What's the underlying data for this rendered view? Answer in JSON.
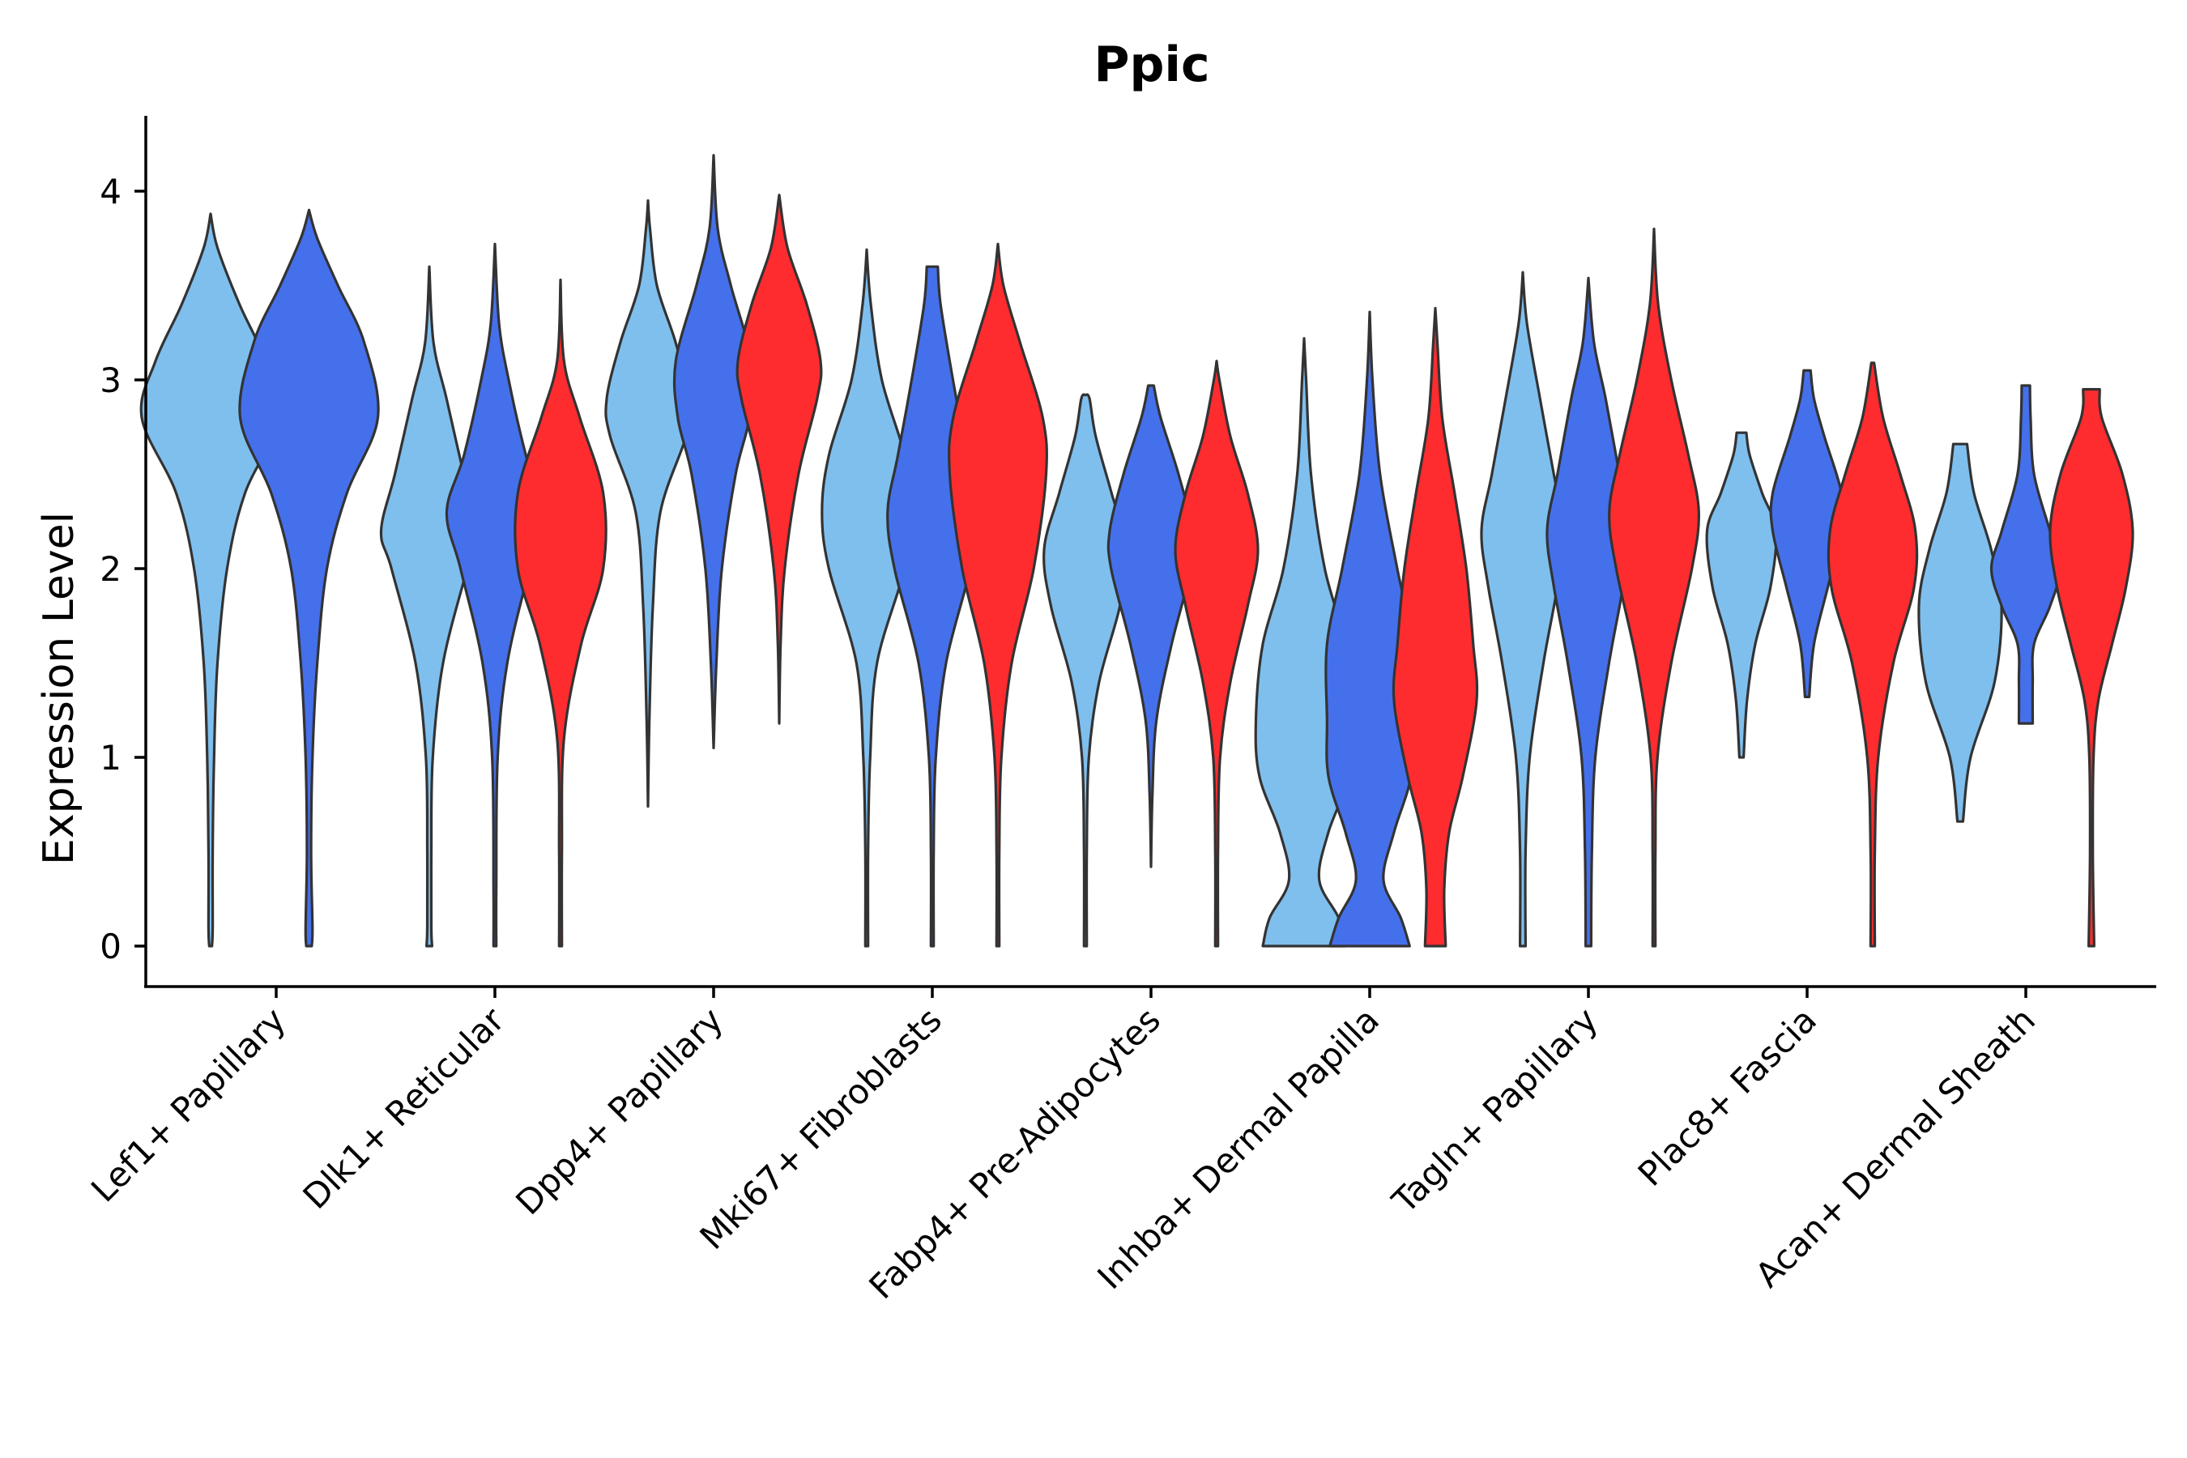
{
  "chart_data": {
    "type": "violin",
    "title": "Ppic",
    "xlabel": "",
    "ylabel": "Expression Level",
    "ylim": [
      -0.2,
      4.4
    ],
    "yticks": [
      0,
      1,
      2,
      3,
      4
    ],
    "categories": [
      "Lef1+ Papillary",
      "Dlk1+ Reticular",
      "Dpp4+ Papillary",
      "Mki67+ Fibroblasts",
      "Fabp4+ Pre-Adipocytes",
      "Inhba+ Dermal Papilla",
      "Tagln+ Papillary",
      "Plac8+ Fascia",
      "Acan+ Dermal Sheath"
    ],
    "series_colors": [
      "#7fbfee",
      "#4570ec",
      "#ff2c2f"
    ],
    "violins": [
      {
        "category": "Lef1+ Papillary",
        "series": 0,
        "offset": -0.3,
        "min": 0,
        "max": 3.88,
        "profile": [
          [
            0,
            0.02
          ],
          [
            0.1,
            0.03
          ],
          [
            0.5,
            0.03
          ],
          [
            1,
            0.05
          ],
          [
            1.5,
            0.1
          ],
          [
            2,
            0.24
          ],
          [
            2.4,
            0.5
          ],
          [
            2.8,
            1.0
          ],
          [
            3.1,
            0.8
          ],
          [
            3.4,
            0.42
          ],
          [
            3.7,
            0.1
          ],
          [
            3.88,
            0
          ]
        ]
      },
      {
        "category": "Lef1+ Papillary",
        "series": 1,
        "offset": 0.15,
        "min": 0,
        "max": 3.9,
        "profile": [
          [
            0,
            0.04
          ],
          [
            0.1,
            0.05
          ],
          [
            0.5,
            0.03
          ],
          [
            1,
            0.05
          ],
          [
            1.5,
            0.12
          ],
          [
            2,
            0.26
          ],
          [
            2.4,
            0.55
          ],
          [
            2.8,
            1.0
          ],
          [
            3.2,
            0.8
          ],
          [
            3.5,
            0.42
          ],
          [
            3.75,
            0.12
          ],
          [
            3.9,
            0
          ]
        ]
      },
      {
        "category": "Dlk1+ Reticular",
        "series": 0,
        "offset": -0.3,
        "min": 0,
        "max": 3.6,
        "profile": [
          [
            0,
            0.04
          ],
          [
            0.1,
            0.03
          ],
          [
            0.5,
            0.03
          ],
          [
            1,
            0.05
          ],
          [
            1.5,
            0.2
          ],
          [
            2,
            0.55
          ],
          [
            2.2,
            0.7
          ],
          [
            2.5,
            0.5
          ],
          [
            2.9,
            0.25
          ],
          [
            3.2,
            0.06
          ],
          [
            3.6,
            0
          ]
        ]
      },
      {
        "category": "Dlk1+ Reticular",
        "series": 1,
        "offset": 0,
        "min": 0,
        "max": 3.72,
        "profile": [
          [
            0,
            0.02
          ],
          [
            0.3,
            0.02
          ],
          [
            1,
            0.04
          ],
          [
            1.5,
            0.18
          ],
          [
            2,
            0.5
          ],
          [
            2.3,
            0.7
          ],
          [
            2.6,
            0.45
          ],
          [
            3,
            0.2
          ],
          [
            3.3,
            0.06
          ],
          [
            3.72,
            0
          ]
        ]
      },
      {
        "category": "Dlk1+ Reticular",
        "series": 2,
        "offset": 0.3,
        "min": 0,
        "max": 3.53,
        "profile": [
          [
            0,
            0.02
          ],
          [
            0.5,
            0.02
          ],
          [
            1.1,
            0.05
          ],
          [
            1.6,
            0.3
          ],
          [
            2,
            0.62
          ],
          [
            2.4,
            0.62
          ],
          [
            2.8,
            0.28
          ],
          [
            3.1,
            0.05
          ],
          [
            3.53,
            0
          ]
        ]
      },
      {
        "category": "Dpp4+ Papillary",
        "series": 0,
        "offset": -0.3,
        "min": 0.74,
        "max": 3.95,
        "profile": [
          [
            0.74,
            0
          ],
          [
            1.2,
            0.02
          ],
          [
            1.8,
            0.07
          ],
          [
            2.3,
            0.18
          ],
          [
            2.7,
            0.55
          ],
          [
            2.9,
            0.6
          ],
          [
            3.2,
            0.4
          ],
          [
            3.5,
            0.13
          ],
          [
            3.8,
            0.03
          ],
          [
            3.95,
            0
          ]
        ]
      },
      {
        "category": "Dpp4+ Papillary",
        "series": 1,
        "offset": 0,
        "min": 1.05,
        "max": 4.19,
        "profile": [
          [
            1.05,
            0
          ],
          [
            1.5,
            0.04
          ],
          [
            2,
            0.12
          ],
          [
            2.5,
            0.32
          ],
          [
            2.8,
            0.52
          ],
          [
            3.1,
            0.55
          ],
          [
            3.5,
            0.25
          ],
          [
            3.8,
            0.06
          ],
          [
            4.19,
            0
          ]
        ]
      },
      {
        "category": "Dpp4+ Papillary",
        "series": 2,
        "offset": 0.3,
        "min": 1.18,
        "max": 3.98,
        "profile": [
          [
            1.18,
            0
          ],
          [
            1.6,
            0.02
          ],
          [
            2,
            0.08
          ],
          [
            2.5,
            0.28
          ],
          [
            2.9,
            0.55
          ],
          [
            3.1,
            0.6
          ],
          [
            3.4,
            0.4
          ],
          [
            3.7,
            0.12
          ],
          [
            3.98,
            0
          ]
        ]
      },
      {
        "category": "Mki67+ Fibroblasts",
        "series": 0,
        "offset": -0.3,
        "min": 0,
        "max": 3.69,
        "profile": [
          [
            0,
            0.02
          ],
          [
            0.5,
            0.02
          ],
          [
            1,
            0.05
          ],
          [
            1.5,
            0.15
          ],
          [
            2,
            0.55
          ],
          [
            2.3,
            0.65
          ],
          [
            2.6,
            0.55
          ],
          [
            3,
            0.22
          ],
          [
            3.4,
            0.06
          ],
          [
            3.69,
            0
          ]
        ]
      },
      {
        "category": "Mki67+ Fibroblasts",
        "series": 1,
        "offset": 0,
        "min": 0,
        "max": 3.6,
        "profile": [
          [
            0,
            0.02
          ],
          [
            0.5,
            0.02
          ],
          [
            1,
            0.05
          ],
          [
            1.5,
            0.2
          ],
          [
            2,
            0.55
          ],
          [
            2.3,
            0.65
          ],
          [
            2.6,
            0.5
          ],
          [
            3,
            0.3
          ],
          [
            3.4,
            0.12
          ],
          [
            3.6,
            0.08
          ]
        ]
      },
      {
        "category": "Mki67+ Fibroblasts",
        "series": 2,
        "offset": 0.3,
        "min": 0,
        "max": 3.72,
        "profile": [
          [
            0,
            0.02
          ],
          [
            0.5,
            0.02
          ],
          [
            1,
            0.05
          ],
          [
            1.5,
            0.2
          ],
          [
            2,
            0.52
          ],
          [
            2.5,
            0.7
          ],
          [
            2.8,
            0.65
          ],
          [
            3.2,
            0.32
          ],
          [
            3.5,
            0.08
          ],
          [
            3.72,
            0
          ]
        ]
      },
      {
        "category": "Fabp4+ Pre-Adipocytes",
        "series": 0,
        "offset": -0.3,
        "min": 0,
        "max": 2.92,
        "profile": [
          [
            0,
            0.02
          ],
          [
            0.5,
            0.02
          ],
          [
            1,
            0.05
          ],
          [
            1.4,
            0.2
          ],
          [
            1.8,
            0.5
          ],
          [
            2.1,
            0.6
          ],
          [
            2.4,
            0.38
          ],
          [
            2.7,
            0.15
          ],
          [
            2.9,
            0.06
          ],
          [
            2.92,
            0
          ]
        ]
      },
      {
        "category": "Fabp4+ Pre-Adipocytes",
        "series": 1,
        "offset": 0,
        "min": 0.42,
        "max": 2.97,
        "profile": [
          [
            0.42,
            0
          ],
          [
            0.8,
            0.02
          ],
          [
            1.2,
            0.08
          ],
          [
            1.6,
            0.3
          ],
          [
            2,
            0.58
          ],
          [
            2.2,
            0.6
          ],
          [
            2.5,
            0.4
          ],
          [
            2.8,
            0.14
          ],
          [
            2.97,
            0.04
          ]
        ]
      },
      {
        "category": "Fabp4+ Pre-Adipocytes",
        "series": 2,
        "offset": 0.3,
        "min": 0,
        "max": 3.1,
        "profile": [
          [
            0,
            0.02
          ],
          [
            0.5,
            0.02
          ],
          [
            1,
            0.05
          ],
          [
            1.4,
            0.2
          ],
          [
            1.8,
            0.45
          ],
          [
            2.1,
            0.6
          ],
          [
            2.4,
            0.45
          ],
          [
            2.7,
            0.2
          ],
          [
            3,
            0.04
          ],
          [
            3.1,
            0
          ]
        ]
      },
      {
        "category": "Inhba+ Dermal Papilla",
        "series": 0,
        "offset": -0.3,
        "min": 0,
        "max": 3.22,
        "profile": [
          [
            0,
            0.6
          ],
          [
            0.15,
            0.5
          ],
          [
            0.35,
            0.22
          ],
          [
            0.6,
            0.35
          ],
          [
            0.9,
            0.65
          ],
          [
            1.2,
            0.7
          ],
          [
            1.6,
            0.6
          ],
          [
            2,
            0.3
          ],
          [
            2.5,
            0.1
          ],
          [
            3,
            0.03
          ],
          [
            3.22,
            0
          ]
        ]
      },
      {
        "category": "Inhba+ Dermal Papilla",
        "series": 1,
        "offset": 0,
        "min": 0,
        "max": 3.36,
        "profile": [
          [
            0,
            0.58
          ],
          [
            0.15,
            0.45
          ],
          [
            0.35,
            0.2
          ],
          [
            0.6,
            0.35
          ],
          [
            0.9,
            0.6
          ],
          [
            1.2,
            0.62
          ],
          [
            1.6,
            0.62
          ],
          [
            2,
            0.4
          ],
          [
            2.5,
            0.15
          ],
          [
            3,
            0.04
          ],
          [
            3.36,
            0
          ]
        ]
      },
      {
        "category": "Inhba+ Dermal Papilla",
        "series": 2,
        "offset": 0.3,
        "min": 0,
        "max": 3.38,
        "profile": [
          [
            0,
            0.15
          ],
          [
            0.3,
            0.13
          ],
          [
            0.6,
            0.2
          ],
          [
            0.9,
            0.4
          ],
          [
            1.3,
            0.6
          ],
          [
            1.6,
            0.55
          ],
          [
            2,
            0.45
          ],
          [
            2.4,
            0.28
          ],
          [
            2.8,
            0.1
          ],
          [
            3.2,
            0.03
          ],
          [
            3.38,
            0
          ]
        ]
      },
      {
        "category": "Tagln+ Papillary",
        "series": 0,
        "offset": -0.3,
        "min": 0,
        "max": 3.57,
        "profile": [
          [
            0,
            0.04
          ],
          [
            0.5,
            0.04
          ],
          [
            1,
            0.1
          ],
          [
            1.5,
            0.3
          ],
          [
            1.9,
            0.5
          ],
          [
            2.2,
            0.6
          ],
          [
            2.5,
            0.45
          ],
          [
            2.9,
            0.25
          ],
          [
            3.3,
            0.06
          ],
          [
            3.57,
            0
          ]
        ]
      },
      {
        "category": "Tagln+ Papillary",
        "series": 1,
        "offset": 0,
        "min": 0,
        "max": 3.54,
        "profile": [
          [
            0,
            0.04
          ],
          [
            0.5,
            0.05
          ],
          [
            1,
            0.1
          ],
          [
            1.5,
            0.3
          ],
          [
            1.9,
            0.5
          ],
          [
            2.2,
            0.6
          ],
          [
            2.5,
            0.45
          ],
          [
            2.9,
            0.25
          ],
          [
            3.2,
            0.08
          ],
          [
            3.54,
            0
          ]
        ]
      },
      {
        "category": "Tagln+ Papillary",
        "series": 2,
        "offset": 0.3,
        "min": 0,
        "max": 3.8,
        "profile": [
          [
            0,
            0.02
          ],
          [
            0.5,
            0.02
          ],
          [
            1,
            0.05
          ],
          [
            1.5,
            0.25
          ],
          [
            2,
            0.55
          ],
          [
            2.3,
            0.65
          ],
          [
            2.6,
            0.5
          ],
          [
            3,
            0.25
          ],
          [
            3.4,
            0.06
          ],
          [
            3.8,
            0
          ]
        ]
      },
      {
        "category": "Plac8+ Fascia",
        "series": 0,
        "offset": -0.3,
        "min": 1.0,
        "max": 2.72,
        "profile": [
          [
            1.0,
            0.03
          ],
          [
            1.3,
            0.08
          ],
          [
            1.6,
            0.2
          ],
          [
            1.9,
            0.42
          ],
          [
            2.2,
            0.5
          ],
          [
            2.4,
            0.3
          ],
          [
            2.6,
            0.12
          ],
          [
            2.72,
            0.07
          ]
        ]
      },
      {
        "category": "Plac8+ Fascia",
        "series": 1,
        "offset": 0,
        "min": 1.32,
        "max": 3.05,
        "profile": [
          [
            1.32,
            0.03
          ],
          [
            1.6,
            0.1
          ],
          [
            1.9,
            0.3
          ],
          [
            2.2,
            0.5
          ],
          [
            2.4,
            0.5
          ],
          [
            2.7,
            0.25
          ],
          [
            2.9,
            0.1
          ],
          [
            3.05,
            0.05
          ]
        ]
      },
      {
        "category": "Plac8+ Fascia",
        "series": 2,
        "offset": 0.3,
        "min": 0,
        "max": 3.09,
        "profile": [
          [
            0,
            0.03
          ],
          [
            0.5,
            0.03
          ],
          [
            1,
            0.08
          ],
          [
            1.5,
            0.3
          ],
          [
            1.9,
            0.6
          ],
          [
            2.2,
            0.62
          ],
          [
            2.5,
            0.4
          ],
          [
            2.8,
            0.15
          ],
          [
            3.09,
            0.02
          ]
        ]
      },
      {
        "category": "Acan+ Dermal Sheath",
        "series": 0,
        "offset": -0.3,
        "min": 0.66,
        "max": 2.66,
        "profile": [
          [
            0.66,
            0.04
          ],
          [
            1,
            0.15
          ],
          [
            1.4,
            0.5
          ],
          [
            1.8,
            0.6
          ],
          [
            2.1,
            0.45
          ],
          [
            2.4,
            0.2
          ],
          [
            2.66,
            0.1
          ]
        ]
      },
      {
        "category": "Acan+ Dermal Sheath",
        "series": 1,
        "offset": 0,
        "min": 1.18,
        "max": 2.97,
        "profile": [
          [
            1.18,
            0.1
          ],
          [
            1.4,
            0.1
          ],
          [
            1.6,
            0.12
          ],
          [
            1.8,
            0.35
          ],
          [
            2,
            0.5
          ],
          [
            2.2,
            0.35
          ],
          [
            2.5,
            0.12
          ],
          [
            2.8,
            0.07
          ],
          [
            2.97,
            0.06
          ]
        ]
      },
      {
        "category": "Acan+ Dermal Sheath",
        "series": 2,
        "offset": 0.3,
        "min": 0,
        "max": 2.95,
        "profile": [
          [
            0,
            0.04
          ],
          [
            0.5,
            0.02
          ],
          [
            1,
            0.03
          ],
          [
            1.3,
            0.1
          ],
          [
            1.6,
            0.3
          ],
          [
            1.9,
            0.5
          ],
          [
            2.2,
            0.6
          ],
          [
            2.5,
            0.45
          ],
          [
            2.8,
            0.15
          ],
          [
            2.95,
            0.12
          ]
        ]
      }
    ]
  }
}
